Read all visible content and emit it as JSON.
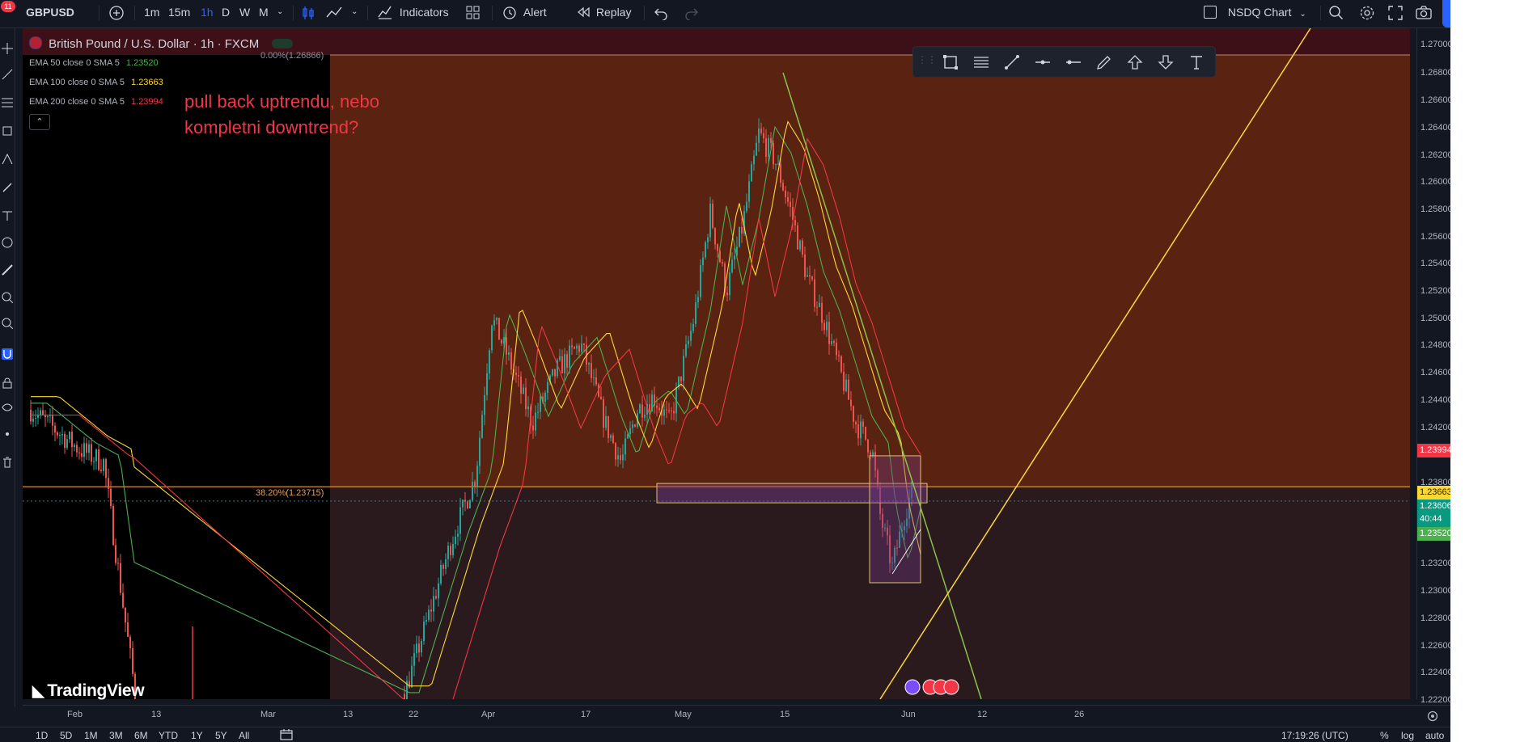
{
  "toolbar": {
    "symbol": "GBPUSD",
    "notification_count": "11",
    "intervals": [
      "1m",
      "15m",
      "1h",
      "D",
      "W",
      "M"
    ],
    "active_interval": "1h",
    "indicators_label": "Indicators",
    "alert_label": "Alert",
    "replay_label": "Replay",
    "layout_name": "NSDQ Chart"
  },
  "legend": {
    "title": "British Pound / U.S. Dollar · 1h · FXCM",
    "rows": [
      {
        "label": "EMA 50 close 0 SMA 5",
        "value": "1.23520",
        "color": "#4caf50"
      },
      {
        "label": "EMA 100 close 0 SMA 5",
        "value": "1.23663",
        "color": "#fdd835"
      },
      {
        "label": "EMA 200 close 0 SMA 5",
        "value": "1.23994",
        "color": "#f23645"
      }
    ],
    "collapse_glyph": "⌃"
  },
  "annotation_text": "pull back uptrendu, nebo kompletni downtrend?",
  "fib_labels": {
    "top": "0.00%(1.26866)",
    "level_382": "38.20%(1.23715)"
  },
  "watermark": "TradingView",
  "price_scale": {
    "ticks": [
      "1.27000",
      "1.26800",
      "1.26600",
      "1.26400",
      "1.26200",
      "1.26000",
      "1.25800",
      "1.25600",
      "1.25400",
      "1.25200",
      "1.25000",
      "1.24800",
      "1.24600",
      "1.24400",
      "1.24200",
      "1.23800",
      "1.23200",
      "1.23000",
      "1.22800",
      "1.22600",
      "1.22400",
      "1.22200"
    ],
    "labels": {
      "ema200": "1.23994",
      "ema100": "1.23663",
      "last": "1.23606",
      "countdown": "40:44",
      "ema50": "1.23520"
    }
  },
  "time_scale": {
    "ticks": [
      "Feb",
      "13",
      "Mar",
      "13",
      "22",
      "Apr",
      "17",
      "May",
      "15",
      "Jun",
      "12",
      "26"
    ]
  },
  "bottom": {
    "ranges": [
      "1D",
      "5D",
      "1M",
      "3M",
      "6M",
      "YTD",
      "1Y",
      "5Y",
      "All"
    ],
    "clock": "17:19:26 (UTC)",
    "percent": "%",
    "log": "log",
    "auto": "auto"
  },
  "colors": {
    "background": "#131722",
    "accent": "#2962ff",
    "up": "#26a69a",
    "down": "#ef5350",
    "zone_upper": "#5a2210",
    "zone_lower": "#2a1a1e",
    "fib_line": "#f0a030",
    "trend_green": "#8bc34a",
    "trend_yellow": "#fdd835",
    "note_text": "#f23645"
  },
  "icons": [
    "plus-circle-icon",
    "candles-icon",
    "line-icon",
    "indicators-icon",
    "templates-icon",
    "alert-icon",
    "replay-icon",
    "undo-icon",
    "redo-icon",
    "search-icon",
    "settings-icon",
    "fullscreen-icon",
    "camera-icon",
    "calendar-icon",
    "rectangle-icon",
    "horizontal-lines-icon",
    "trendline-icon",
    "horizontal-ray-icon",
    "extended-line-icon",
    "brush-icon",
    "arrow-up-icon",
    "arrow-down-icon",
    "text-icon"
  ]
}
